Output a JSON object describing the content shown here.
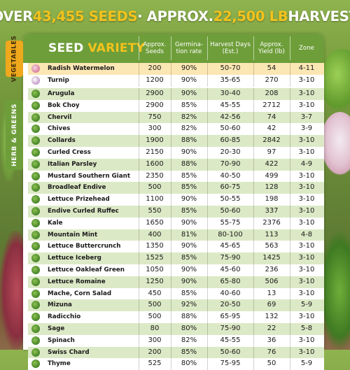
{
  "banner": {
    "part1": "OVER ",
    "seeds_count": "43,455 SEEDS",
    "part2": " · APPROX. ",
    "harvest_weight": "22,500 LB",
    "part3": " HARVEST"
  },
  "table": {
    "header": {
      "variety_word1": "SEED",
      "variety_word2": " VARIETY",
      "col_seeds": "Approx. Seeds",
      "col_germination": "Germina-tion rate",
      "col_harvest": "Harvest Days (Est.)",
      "col_yield": "Approx. Yield (lb)",
      "col_zone": "Zone"
    },
    "sections": {
      "vegetables_label": "VEGETABLES",
      "herbs_greens_label": "HERB & GREENS"
    },
    "vegetables": [
      {
        "name": "Radish Watermelon",
        "seeds": "200",
        "germination": "90%",
        "harvest": "50-70",
        "yield": "54",
        "zone": "4-11",
        "icon": "radish-icon"
      },
      {
        "name": "Turnip",
        "seeds": "1200",
        "germination": "90%",
        "harvest": "35-65",
        "yield": "270",
        "zone": "3-10",
        "icon": "turnip-icon"
      }
    ],
    "herbs_greens": [
      {
        "name": "Arugula",
        "seeds": "2900",
        "germination": "90%",
        "harvest": "30-40",
        "yield": "208",
        "zone": "3-10"
      },
      {
        "name": "Bok Choy",
        "seeds": "2900",
        "germination": "85%",
        "harvest": "45-55",
        "yield": "2712",
        "zone": "3-10"
      },
      {
        "name": "Chervil",
        "seeds": "750",
        "germination": "82%",
        "harvest": "42-56",
        "yield": "74",
        "zone": "3-7"
      },
      {
        "name": "Chives",
        "seeds": "300",
        "germination": "82%",
        "harvest": "50-60",
        "yield": "42",
        "zone": "3-9"
      },
      {
        "name": "Collards",
        "seeds": "1900",
        "germination": "88%",
        "harvest": "60-85",
        "yield": "2842",
        "zone": "3-10"
      },
      {
        "name": "Curled Cress",
        "seeds": "2150",
        "germination": "90%",
        "harvest": "20-30",
        "yield": "97",
        "zone": "3-10"
      },
      {
        "name": "Italian Parsley",
        "seeds": "1600",
        "germination": "88%",
        "harvest": "70-90",
        "yield": "422",
        "zone": "4-9"
      },
      {
        "name": "Mustard Southern Giant",
        "seeds": "2350",
        "germination": "85%",
        "harvest": "40-50",
        "yield": "499",
        "zone": "3-10"
      },
      {
        "name": "Broadleaf Endive",
        "seeds": "500",
        "germination": "85%",
        "harvest": "60-75",
        "yield": "128",
        "zone": "3-10"
      },
      {
        "name": "Lettuce Prizehead",
        "seeds": "1100",
        "germination": "90%",
        "harvest": "50-55",
        "yield": "198",
        "zone": "3-10"
      },
      {
        "name": "Endive Curled Ruffec",
        "seeds": "550",
        "germination": "85%",
        "harvest": "50-60",
        "yield": "337",
        "zone": "3-10"
      },
      {
        "name": "Kale",
        "seeds": "1650",
        "germination": "90%",
        "harvest": "55-75",
        "yield": "2376",
        "zone": "3-10"
      },
      {
        "name": "Mountain Mint",
        "seeds": "400",
        "germination": "81%",
        "harvest": "80-100",
        "yield": "113",
        "zone": "4-8"
      },
      {
        "name": "Lettuce Buttercrunch",
        "seeds": "1350",
        "germination": "90%",
        "harvest": "45-65",
        "yield": "563",
        "zone": "3-10"
      },
      {
        "name": "Lettuce Iceberg",
        "seeds": "1525",
        "germination": "85%",
        "harvest": "75-90",
        "yield": "1425",
        "zone": "3-10"
      },
      {
        "name": "Lettuce Oakleaf Green",
        "seeds": "1050",
        "germination": "90%",
        "harvest": "45-60",
        "yield": "236",
        "zone": "3-10"
      },
      {
        "name": "Lettuce Romaine",
        "seeds": "1250",
        "germination": "90%",
        "harvest": "65-80",
        "yield": "506",
        "zone": "3-10"
      },
      {
        "name": "Mache, Corn Salad",
        "seeds": "450",
        "germination": "85%",
        "harvest": "40-60",
        "yield": "13",
        "zone": "3-10"
      },
      {
        "name": "Mizuna",
        "seeds": "500",
        "germination": "92%",
        "harvest": "20-50",
        "yield": "69",
        "zone": "5-9"
      },
      {
        "name": "Radicchio",
        "seeds": "500",
        "germination": "88%",
        "harvest": "65-95",
        "yield": "132",
        "zone": "3-10"
      },
      {
        "name": "Sage",
        "seeds": "80",
        "germination": "80%",
        "harvest": "75-90",
        "yield": "22",
        "zone": "5-8"
      },
      {
        "name": "Spinach",
        "seeds": "300",
        "germination": "82%",
        "harvest": "45-55",
        "yield": "36",
        "zone": "3-10"
      },
      {
        "name": "Swiss Chard",
        "seeds": "200",
        "germination": "85%",
        "harvest": "50-60",
        "yield": "76",
        "zone": "3-10"
      },
      {
        "name": "Thyme",
        "seeds": "525",
        "germination": "80%",
        "harvest": "75-95",
        "yield": "50",
        "zone": "5-9"
      }
    ]
  },
  "colors": {
    "header_green": "#6e9e3a",
    "accent_yellow": "#f4c21c",
    "row_green": "#dce9c6",
    "row_yellow": "#fbe7b4"
  }
}
